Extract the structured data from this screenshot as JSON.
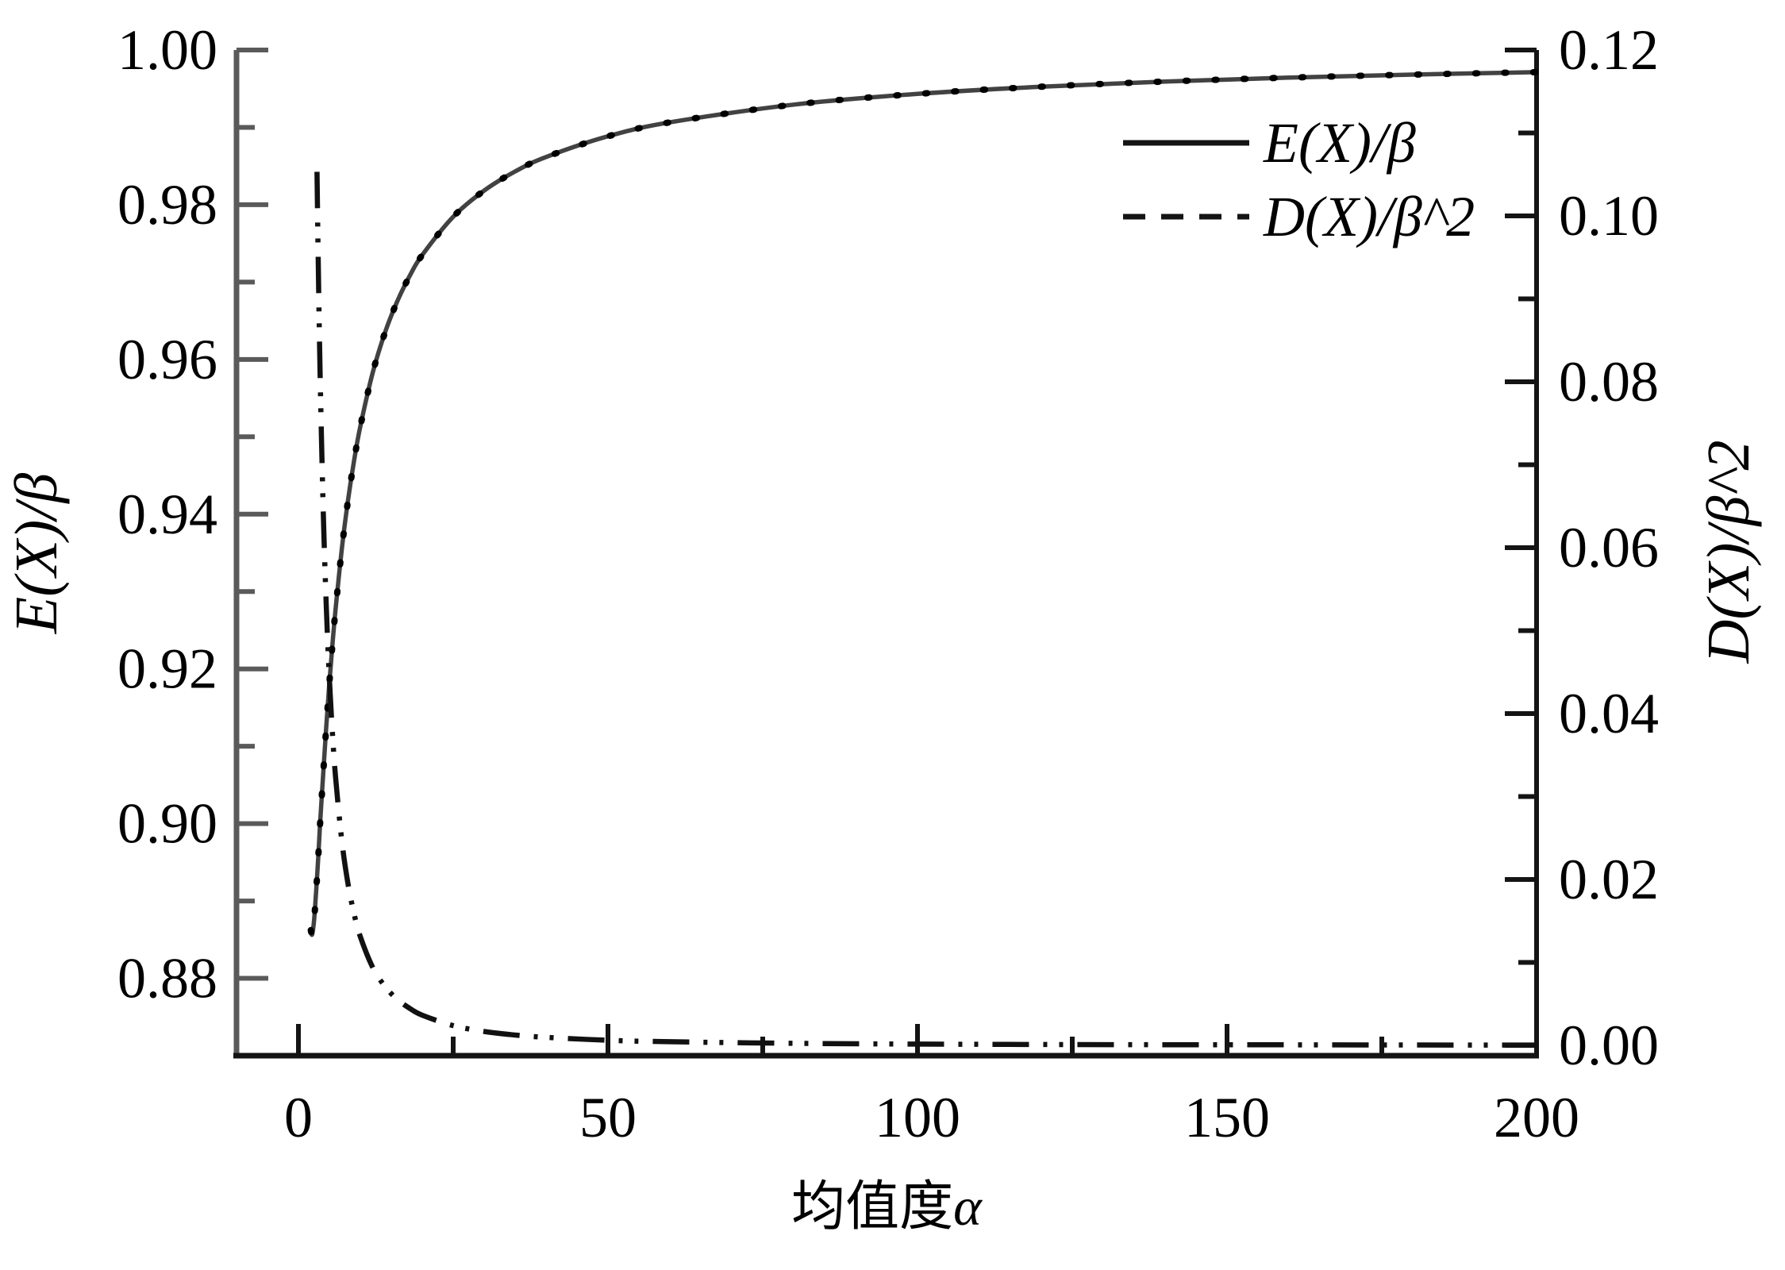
{
  "figure": {
    "background": "#ffffff",
    "description": "Dual-axis line chart of Weibull normalized mean and variance versus shape parameter"
  },
  "legend": {
    "position": "top-right-inside",
    "items": [
      {
        "label": "E(X)/β",
        "line_style": "solid",
        "color": "#141414"
      },
      {
        "label": "D(X)/β^2",
        "line_style": "dashed",
        "color": "#141414"
      }
    ]
  },
  "chart_data": {
    "type": "line",
    "title": "",
    "xlabel": "均值度α",
    "xlabel_cjk": "均值度",
    "xlabel_symbol": "α",
    "ylabel_left": "E(X)/β",
    "ylabel_right": "D(X)/β^2",
    "grid": false,
    "x_axis": {
      "range": [
        -10,
        200
      ],
      "major_ticks": [
        {
          "v": 0,
          "label": "0"
        },
        {
          "v": 50,
          "label": "50"
        },
        {
          "v": 100,
          "label": "100"
        },
        {
          "v": 150,
          "label": "150"
        },
        {
          "v": 200,
          "label": "200"
        }
      ],
      "minor_ticks": [
        25,
        75,
        125,
        175
      ]
    },
    "y_left_axis": {
      "range": [
        0.87,
        1.0
      ],
      "major_ticks": [
        {
          "v": 0.88,
          "label": "0.88"
        },
        {
          "v": 0.9,
          "label": "0.90"
        },
        {
          "v": 0.92,
          "label": "0.92"
        },
        {
          "v": 0.94,
          "label": "0.94"
        },
        {
          "v": 0.96,
          "label": "0.96"
        },
        {
          "v": 0.98,
          "label": "0.98"
        },
        {
          "v": 1.0,
          "label": "1.00"
        }
      ],
      "minor_ticks": [
        0.89,
        0.91,
        0.93,
        0.95,
        0.97,
        0.99
      ]
    },
    "y_right_axis": {
      "range": [
        -0.00124,
        0.12
      ],
      "major_ticks": [
        {
          "v": 0.0,
          "label": "0.00"
        },
        {
          "v": 0.02,
          "label": "0.02"
        },
        {
          "v": 0.04,
          "label": "0.04"
        },
        {
          "v": 0.06,
          "label": "0.06"
        },
        {
          "v": 0.08,
          "label": "0.08"
        },
        {
          "v": 0.1,
          "label": "0.10"
        },
        {
          "v": 0.12,
          "label": "0.12"
        }
      ],
      "minor_ticks": [
        0.01,
        0.03,
        0.05,
        0.07,
        0.09,
        0.11
      ]
    },
    "series": [
      {
        "name": "E(X)/β",
        "axis": "left",
        "style": "solid-with-dot-markers",
        "color": "#424242",
        "marker_color": "#000000",
        "points": [
          [
            2,
            0.88623
          ],
          [
            2.2,
            0.88565
          ],
          [
            2.5,
            0.88726
          ],
          [
            2.8,
            0.89048
          ],
          [
            3,
            0.89298
          ],
          [
            3.2,
            0.89565
          ],
          [
            3.5,
            0.90002
          ],
          [
            4,
            0.9064
          ],
          [
            4.5,
            0.91258
          ],
          [
            5,
            0.91817
          ],
          [
            5.5,
            0.9232
          ],
          [
            6,
            0.92772
          ],
          [
            7,
            0.93544
          ],
          [
            8,
            0.94174
          ],
          [
            9,
            0.94697
          ],
          [
            10,
            0.95135
          ],
          [
            12,
            0.95829
          ],
          [
            14,
            0.96351
          ],
          [
            16,
            0.96758
          ],
          [
            18,
            0.97084
          ],
          [
            20,
            0.9735
          ],
          [
            25,
            0.97844
          ],
          [
            30,
            0.98183
          ],
          [
            35,
            0.9843
          ],
          [
            40,
            0.98617
          ],
          [
            50,
            0.98885
          ],
          [
            60,
            0.99065
          ],
          [
            80,
            0.99294
          ],
          [
            100,
            0.99433
          ],
          [
            120,
            0.99526
          ],
          [
            140,
            0.99593
          ],
          [
            160,
            0.99643
          ],
          [
            180,
            0.99682
          ],
          [
            200,
            0.99714
          ]
        ]
      },
      {
        "name": "D(X)/β^2",
        "axis": "right",
        "style": "dash-dot-dot",
        "color": "#111111",
        "points": [
          [
            3,
            0.10532
          ],
          [
            3.2,
            0.09434
          ],
          [
            3.5,
            0.08107
          ],
          [
            4,
            0.06466
          ],
          [
            4.5,
            0.05294
          ],
          [
            5,
            0.04423
          ],
          [
            5.5,
            0.03755
          ],
          [
            6,
            0.03233
          ],
          [
            7,
            0.02472
          ],
          [
            8,
            0.01952
          ],
          [
            9,
            0.01583
          ],
          [
            10,
            0.0131
          ],
          [
            12,
            0.0094
          ],
          [
            14,
            0.00709
          ],
          [
            16,
            0.00553
          ],
          [
            18,
            0.00445
          ],
          [
            20,
            0.00364
          ],
          [
            25,
            0.00239
          ],
          [
            30,
            0.00168
          ],
          [
            35,
            0.00125
          ],
          [
            40,
            0.00097
          ],
          [
            50,
            0.00062
          ],
          [
            60,
            0.00044
          ],
          [
            80,
            0.00025
          ],
          [
            100,
            0.00016
          ],
          [
            120,
            0.00011
          ],
          [
            140,
            8e-05
          ],
          [
            160,
            7e-05
          ],
          [
            180,
            5e-05
          ],
          [
            200,
            4e-05
          ]
        ]
      }
    ]
  },
  "style": {
    "left_axis_color": "#5a5a5a",
    "dark_axis_color": "#141414",
    "text_color": "#000000"
  }
}
